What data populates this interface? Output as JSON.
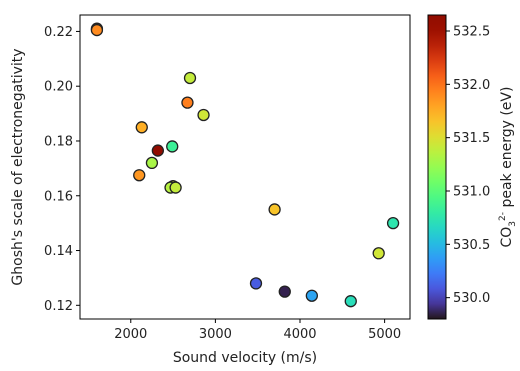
{
  "chart_data": {
    "type": "scatter",
    "xlabel": "Sound velocity (m/s)",
    "ylabel": "Ghosh's scale of electronegativity",
    "colorbar_label_parts": {
      "base": "CO",
      "sub": "3",
      "sup": "2-",
      "rest": " peak energy (eV)"
    },
    "xlim": [
      1400,
      5300
    ],
    "ylim": [
      0.115,
      0.226
    ],
    "xticks": [
      "2000",
      "3000",
      "4000",
      "5000"
    ],
    "yticks": [
      "0.12",
      "0.14",
      "0.16",
      "0.18",
      "0.20",
      "0.22"
    ],
    "colorbar_range": [
      529.8,
      532.65
    ],
    "colorbar_ticks": [
      "530.0",
      "530.5",
      "531.0",
      "531.5",
      "532.0",
      "532.5"
    ],
    "colormap": "turbo",
    "grid": false,
    "points": [
      {
        "x": 1600,
        "y": 0.221,
        "c": 531.85
      },
      {
        "x": 1600,
        "y": 0.2205,
        "c": 531.9
      },
      {
        "x": 2700,
        "y": 0.203,
        "c": 531.4
      },
      {
        "x": 2670,
        "y": 0.194,
        "c": 531.95
      },
      {
        "x": 2860,
        "y": 0.1895,
        "c": 531.45
      },
      {
        "x": 2130,
        "y": 0.185,
        "c": 531.75
      },
      {
        "x": 2490,
        "y": 0.178,
        "c": 530.85
      },
      {
        "x": 2320,
        "y": 0.1765,
        "c": 532.6
      },
      {
        "x": 2250,
        "y": 0.172,
        "c": 531.3
      },
      {
        "x": 2100,
        "y": 0.1675,
        "c": 531.85
      },
      {
        "x": 2500,
        "y": 0.1635,
        "c": 531.5
      },
      {
        "x": 2470,
        "y": 0.163,
        "c": 531.35
      },
      {
        "x": 2530,
        "y": 0.163,
        "c": 531.4
      },
      {
        "x": 3700,
        "y": 0.155,
        "c": 531.65
      },
      {
        "x": 5100,
        "y": 0.15,
        "c": 530.75
      },
      {
        "x": 4930,
        "y": 0.139,
        "c": 531.45
      },
      {
        "x": 3480,
        "y": 0.128,
        "c": 530.1
      },
      {
        "x": 3820,
        "y": 0.125,
        "c": 529.85
      },
      {
        "x": 4140,
        "y": 0.1235,
        "c": 530.4
      },
      {
        "x": 4600,
        "y": 0.1215,
        "c": 530.7
      }
    ]
  }
}
